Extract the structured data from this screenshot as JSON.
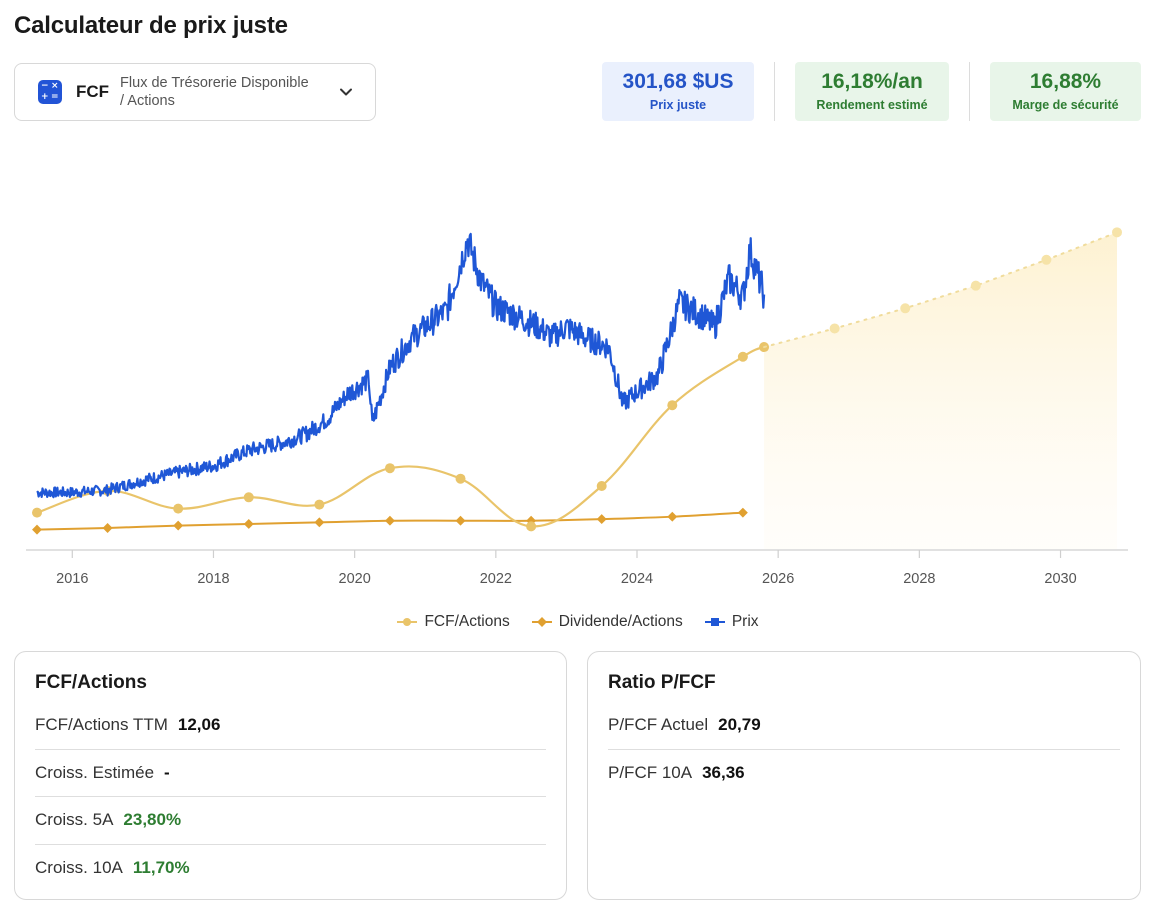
{
  "header": {
    "title": "Calculateur de prix juste"
  },
  "selector": {
    "code": "FCF",
    "description": "Flux de Trésorerie Disponible / Actions"
  },
  "kpis": {
    "fair_price": {
      "value": "301,68 $US",
      "label": "Prix juste"
    },
    "estimated_return": {
      "value": "16,18%/an",
      "label": "Rendement estimé"
    },
    "safety_margin": {
      "value": "16,88%",
      "label": "Marge de sécurité"
    }
  },
  "colors": {
    "price": "#1f57d6",
    "fcf": "#e9c46a",
    "dividend": "#e0a030",
    "projection_fill": "#fdf3d8",
    "positive": "#2e7d32"
  },
  "chart_data": {
    "type": "line",
    "xlim": [
      2015.5,
      2031.3
    ],
    "ylim": [
      0,
      385
    ],
    "x_ticks": [
      "2016",
      "2018",
      "2020",
      "2022",
      "2024",
      "2026",
      "2028",
      "2030"
    ],
    "legend": {
      "placement": "bottom-center"
    },
    "series": [
      {
        "name": "FCF/Actions",
        "x": [
          2015.5,
          2016.5,
          2017.5,
          2018.5,
          2019.5,
          2020.5,
          2021.5,
          2022.5,
          2023.5,
          2024.5,
          2025.5,
          2025.8
        ],
        "y": [
          45,
          72,
          50,
          64,
          55,
          100,
          87,
          28,
          78,
          178,
          238,
          250
        ]
      },
      {
        "name": "Projection FCF/Actions",
        "x": [
          2025.8,
          2026.8,
          2027.8,
          2028.8,
          2029.8,
          2030.8
        ],
        "y": [
          250,
          273,
          298,
          326,
          358,
          392
        ]
      },
      {
        "name": "Dividende/Actions",
        "x": [
          2015.5,
          2016.5,
          2017.5,
          2018.5,
          2019.5,
          2020.5,
          2021.5,
          2022.5,
          2023.5,
          2024.5,
          2025.5
        ],
        "y": [
          24,
          26,
          29,
          31,
          33,
          35,
          35,
          35,
          37,
          40,
          45
        ]
      },
      {
        "name": "Prix",
        "x": [
          2015.5,
          2016.0,
          2016.5,
          2017.0,
          2017.5,
          2018.0,
          2018.5,
          2019.0,
          2019.3,
          2019.6,
          2019.9,
          2020.2,
          2020.25,
          2020.5,
          2020.8,
          2021.0,
          2021.3,
          2021.6,
          2021.8,
          2022.0,
          2022.3,
          2022.6,
          2022.8,
          2023.0,
          2023.3,
          2023.6,
          2023.8,
          2024.0,
          2024.3,
          2024.6,
          2024.9,
          2025.1,
          2025.3,
          2025.5,
          2025.6,
          2025.8
        ],
        "y": [
          70,
          70,
          73,
          85,
          95,
          103,
          122,
          132,
          142,
          160,
          192,
          210,
          155,
          225,
          260,
          275,
          295,
          383,
          330,
          300,
          288,
          275,
          262,
          275,
          260,
          250,
          180,
          195,
          215,
          305,
          290,
          275,
          335,
          312,
          370,
          315
        ]
      }
    ]
  },
  "fcf_card": {
    "title": "FCF/Actions",
    "rows": [
      {
        "label": "FCF/Actions TTM",
        "value": "12,06"
      },
      {
        "label": "Croiss. Estimée",
        "value": "-"
      },
      {
        "label": "Croiss. 5A",
        "value": "23,80%"
      },
      {
        "label": "Croiss. 10A",
        "value": "11,70%"
      }
    ]
  },
  "ratio_card": {
    "title": "Ratio P/FCF",
    "rows": [
      {
        "label": "P/FCF Actuel",
        "value": "20,79"
      },
      {
        "label": "P/FCF 10A",
        "value": "36,36"
      }
    ]
  }
}
